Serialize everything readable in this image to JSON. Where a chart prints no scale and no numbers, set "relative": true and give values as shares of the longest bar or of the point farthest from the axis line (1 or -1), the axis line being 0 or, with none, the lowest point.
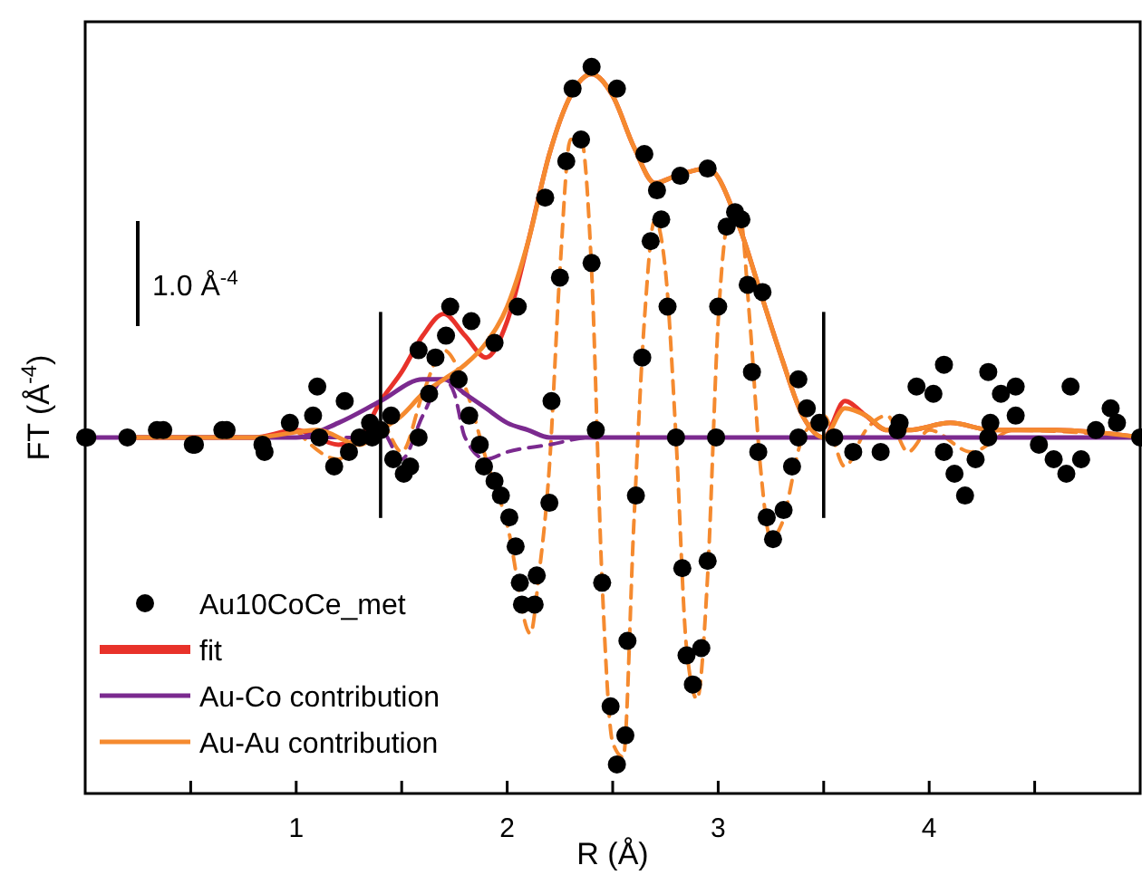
{
  "chart_data": {
    "type": "line",
    "relative": true,
    "xlabel": "R (Å)",
    "ylabel": "FT (Å$^{-4}$)",
    "xlim": [
      0,
      5
    ],
    "xticks": [
      {
        "value": 0.5,
        "label": null
      },
      1,
      {
        "value": 1.5,
        "label": null
      },
      2,
      {
        "value": 2.5,
        "label": null
      },
      3,
      {
        "value": 3.5,
        "label": null
      },
      4,
      {
        "value": 4.5,
        "label": null
      }
    ],
    "tick_labels": "x",
    "grid": false,
    "legend": "bottom left",
    "annotations": [
      "1.0 Å$^{-4}$"
    ],
    "ref_lines": [
      {
        "axis": "x",
        "value": 1.4,
        "color": "#000000"
      },
      {
        "axis": "x",
        "value": 3.5,
        "color": "#000000"
      }
    ],
    "series": [
      {
        "name": "Au10CoCe_met",
        "type": "scatter",
        "marker": "circle",
        "color": "#000000",
        "x": [
          0.0,
          0.2,
          0.37,
          0.52,
          0.67,
          0.85,
          0.97,
          1.1,
          1.23,
          1.36,
          1.45,
          1.58,
          1.73,
          1.83,
          1.94,
          2.05,
          2.18,
          2.31,
          2.4,
          2.52,
          2.65,
          2.71,
          2.82,
          2.95,
          3.08,
          3.21,
          3.38,
          3.48,
          3.55,
          3.64,
          3.77,
          3.85,
          3.94,
          4.07,
          4.28,
          4.41,
          4.67,
          4.89,
          5.0,
          0.01,
          0.34,
          0.51,
          0.65,
          0.84,
          1.08,
          1.11,
          1.18,
          1.25,
          1.3,
          1.35,
          1.4,
          1.46,
          1.51,
          1.54,
          1.58,
          1.63,
          1.66,
          1.71,
          1.77,
          1.82,
          1.87,
          1.89,
          1.94,
          1.97,
          2.01,
          2.04,
          2.06,
          2.07,
          2.13,
          2.14,
          2.2,
          2.21,
          2.25,
          2.28,
          2.35,
          2.4,
          2.42,
          2.45,
          2.49,
          2.52,
          2.56,
          2.57,
          2.61,
          2.64,
          2.68,
          2.73,
          2.76,
          2.8,
          2.83,
          2.85,
          2.88,
          2.92,
          2.95,
          2.99,
          3.0,
          3.04,
          3.11,
          3.14,
          3.16,
          3.19,
          3.23,
          3.26,
          3.31,
          3.35,
          3.38,
          3.42,
          3.86,
          4.02,
          4.07,
          4.12,
          4.17,
          4.22,
          4.28,
          4.29,
          4.34,
          4.41,
          4.52,
          4.59,
          4.65,
          4.72,
          4.79,
          4.86
        ],
        "values": [
          0.49,
          0.49,
          0.5,
          0.48,
          0.5,
          0.47,
          0.51,
          0.56,
          0.54,
          0.49,
          0.52,
          0.61,
          0.67,
          0.65,
          0.62,
          0.67,
          0.82,
          0.97,
          1.0,
          0.97,
          0.88,
          0.83,
          0.85,
          0.86,
          0.8,
          0.69,
          0.57,
          0.51,
          0.49,
          0.47,
          0.47,
          0.5,
          0.56,
          0.59,
          0.58,
          0.56,
          0.56,
          0.51,
          0.49,
          0.49,
          0.5,
          0.48,
          0.5,
          0.48,
          0.52,
          0.49,
          0.45,
          0.47,
          0.49,
          0.51,
          0.5,
          0.46,
          0.44,
          0.45,
          0.49,
          0.55,
          0.6,
          0.63,
          0.57,
          0.52,
          0.48,
          0.45,
          0.43,
          0.41,
          0.38,
          0.34,
          0.29,
          0.26,
          0.26,
          0.3,
          0.4,
          0.54,
          0.71,
          0.87,
          0.9,
          0.73,
          0.5,
          0.29,
          0.12,
          0.04,
          0.08,
          0.21,
          0.41,
          0.6,
          0.76,
          0.79,
          0.67,
          0.49,
          0.31,
          0.19,
          0.15,
          0.2,
          0.32,
          0.49,
          0.67,
          0.78,
          0.79,
          0.7,
          0.58,
          0.47,
          0.38,
          0.35,
          0.39,
          0.45,
          0.49,
          0.53,
          0.51,
          0.55,
          0.47,
          0.44,
          0.41,
          0.46,
          0.49,
          0.51,
          0.55,
          0.52,
          0.48,
          0.46,
          0.44,
          0.46,
          0.5,
          0.53
        ]
      },
      {
        "line_style": "dashed",
        "color": "#f58a2f",
        "x": [
          1.0,
          1.2,
          1.3,
          1.4,
          1.5,
          1.6,
          1.7,
          1.8,
          1.9,
          2.0,
          2.11,
          2.15,
          2.2,
          2.25,
          2.3,
          2.35,
          2.4,
          2.45,
          2.5,
          2.55,
          2.6,
          2.65,
          2.7,
          2.75,
          2.8,
          2.85,
          2.9,
          2.95,
          3.0,
          3.05,
          3.1,
          3.15,
          3.2,
          3.25,
          3.3,
          3.4,
          3.5,
          3.6,
          3.7,
          3.8,
          3.9,
          4.0,
          4.2,
          4.4,
          5.0
        ],
        "values": [
          0.5,
          0.46,
          0.49,
          0.51,
          0.47,
          0.55,
          0.61,
          0.56,
          0.46,
          0.37,
          0.22,
          0.3,
          0.45,
          0.72,
          0.9,
          0.9,
          0.72,
          0.29,
          0.07,
          0.05,
          0.37,
          0.65,
          0.79,
          0.72,
          0.49,
          0.2,
          0.13,
          0.3,
          0.65,
          0.79,
          0.8,
          0.65,
          0.45,
          0.35,
          0.37,
          0.49,
          0.52,
          0.45,
          0.5,
          0.52,
          0.47,
          0.5,
          0.47,
          0.5,
          0.49
        ]
      },
      {
        "line_style": "dashed",
        "color": "#7b2a8f",
        "x": [
          0.0,
          1.0,
          1.3,
          1.4,
          1.5,
          1.6,
          1.7,
          1.75,
          1.8,
          1.9,
          2.0,
          2.2,
          2.4,
          5.0
        ],
        "values": [
          0.49,
          0.49,
          0.49,
          0.5,
          0.46,
          0.52,
          0.57,
          0.55,
          0.49,
          0.46,
          0.47,
          0.48,
          0.49,
          0.49
        ]
      },
      {
        "name": "fit",
        "line_style": "solid",
        "color": "#e8322a",
        "x": [
          0.2,
          0.5,
          0.8,
          1.0,
          1.2,
          1.3,
          1.4,
          1.5,
          1.6,
          1.7,
          1.8,
          1.9,
          2.0,
          2.1,
          2.2,
          2.3,
          2.4,
          2.5,
          2.6,
          2.7,
          2.8,
          2.95,
          3.1,
          3.2,
          3.3,
          3.4,
          3.5,
          3.6,
          3.7,
          3.8,
          3.9,
          4.1,
          4.3,
          4.6,
          5.0
        ],
        "values": [
          0.49,
          0.49,
          0.49,
          0.5,
          0.48,
          0.49,
          0.54,
          0.58,
          0.63,
          0.66,
          0.63,
          0.6,
          0.65,
          0.76,
          0.88,
          0.96,
          0.99,
          0.96,
          0.89,
          0.84,
          0.85,
          0.86,
          0.78,
          0.69,
          0.6,
          0.52,
          0.49,
          0.54,
          0.52,
          0.5,
          0.5,
          0.51,
          0.5,
          0.5,
          0.49
        ]
      },
      {
        "name": "Au-Co contribution",
        "line_style": "solid",
        "color": "#7b2a8f",
        "x": [
          0.0,
          1.0,
          1.2,
          1.4,
          1.6,
          1.7,
          1.8,
          1.9,
          2.0,
          2.1,
          2.2,
          5.0
        ],
        "values": [
          0.49,
          0.49,
          0.51,
          0.54,
          0.57,
          0.57,
          0.55,
          0.53,
          0.51,
          0.5,
          0.49,
          0.49
        ]
      },
      {
        "name": "Au-Au contribution",
        "line_style": "solid",
        "color": "#f58a2f",
        "x": [
          0.2,
          0.8,
          1.1,
          1.3,
          1.4,
          1.5,
          1.6,
          1.7,
          1.8,
          1.9,
          2.0,
          2.1,
          2.2,
          2.3,
          2.4,
          2.5,
          2.6,
          2.7,
          2.8,
          2.95,
          3.1,
          3.2,
          3.3,
          3.4,
          3.5,
          3.6,
          3.7,
          3.8,
          3.9,
          4.1,
          4.3,
          4.6,
          5.0
        ],
        "values": [
          0.49,
          0.49,
          0.5,
          0.48,
          0.5,
          0.52,
          0.55,
          0.57,
          0.59,
          0.62,
          0.67,
          0.76,
          0.88,
          0.96,
          0.99,
          0.96,
          0.89,
          0.84,
          0.85,
          0.86,
          0.78,
          0.69,
          0.6,
          0.52,
          0.49,
          0.53,
          0.52,
          0.5,
          0.5,
          0.51,
          0.5,
          0.5,
          0.49
        ]
      }
    ]
  }
}
